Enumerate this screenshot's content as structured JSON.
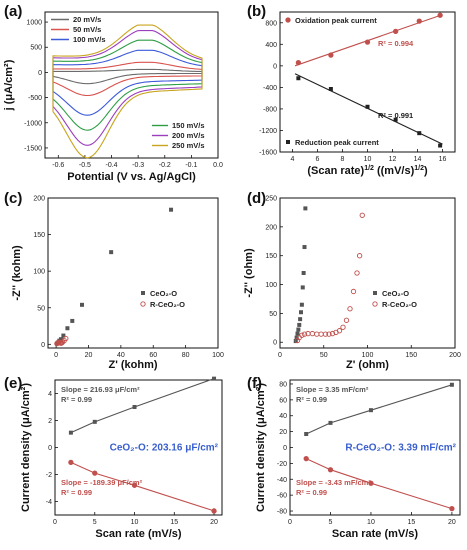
{
  "chart_data": [
    {
      "panel": "(a)",
      "type": "line",
      "xlabel": "Potential (V vs. Ag/AgCl)",
      "ylabel": "j (μA/cm²)",
      "xlim": [
        -0.65,
        0.0
      ],
      "ylim": [
        -1700,
        1200
      ],
      "xticks": [
        "-0.6",
        "-0.5",
        "-0.4",
        "-0.3",
        "-0.2",
        "-0.1",
        "0.0"
      ],
      "yticks": [
        "-1500",
        "-1000",
        "-500",
        "0",
        "500",
        "1000"
      ],
      "legend_top": [
        "20  mV/s",
        "50  mV/s",
        "100 mV/s"
      ],
      "legend_bottom": [
        "150 mV/s",
        "200 mV/s",
        "250 mV/s"
      ],
      "series": [
        {
          "name": "20  mV/s",
          "color": "#6b6b6b",
          "ox_peak": 60,
          "red_peak": -230
        },
        {
          "name": "50  mV/s",
          "color": "#d9534f",
          "ox_peak": 200,
          "red_peak": -430
        },
        {
          "name": "100 mV/s",
          "color": "#3d5bd9",
          "ox_peak": 440,
          "red_peak": -760
        },
        {
          "name": "150 mV/s",
          "color": "#2e9e46",
          "ox_peak": 640,
          "red_peak": -1000
        },
        {
          "name": "200 mV/s",
          "color": "#9b3fbf",
          "ox_peak": 830,
          "red_peak": -1250
        },
        {
          "name": "250 mV/s",
          "color": "#c8a51e",
          "ox_peak": 940,
          "red_peak": -1480
        }
      ]
    },
    {
      "panel": "(b)",
      "type": "scatter",
      "xlabel": "(Scan rate)",
      "xlabel_sup1": "1/2",
      "xlabel_mid": " ((mV/s)",
      "xlabel_sup2": "1/2",
      "xlabel_end": ")",
      "xlim": [
        3,
        17
      ],
      "ylim": [
        -1600,
        1000
      ],
      "xticks": [
        "4",
        "6",
        "8",
        "10",
        "12",
        "14",
        "16"
      ],
      "yticks": [
        "-1600",
        "-1200",
        "-800",
        "-400",
        "0",
        "400",
        "800"
      ],
      "legend_ox": "Oxidation peak current",
      "legend_red": "Reduction peak current",
      "r2_ox": "R² = 0.994",
      "r2_red": "R² = 0.991",
      "x": [
        4.47,
        7.07,
        10.0,
        12.25,
        14.14,
        15.81
      ],
      "oxidation": [
        60,
        200,
        440,
        640,
        830,
        940
      ],
      "reduction": [
        -230,
        -430,
        -760,
        -1000,
        -1250,
        -1480
      ],
      "colors": {
        "oxidation": "#c0504d",
        "reduction": "#222222"
      }
    },
    {
      "panel": "(c)",
      "type": "scatter",
      "xlabel": "Z' (kohm)",
      "ylabel": "-Z'' (kohm)",
      "xlim": [
        -5,
        100
      ],
      "ylim": [
        -5,
        200
      ],
      "xticks": [
        "0",
        "20",
        "40",
        "60",
        "80",
        "100"
      ],
      "yticks": [
        "0",
        "50",
        "100",
        "150",
        "200"
      ],
      "series": [
        {
          "name": "CeO₂-O",
          "color": "#555555",
          "shape": "square",
          "x": [
            0.5,
            1,
            1.5,
            2,
            3,
            4.5,
            7,
            10,
            16,
            34,
            71
          ],
          "y": [
            1,
            2,
            3,
            5,
            7,
            12,
            22,
            32,
            54,
            126,
            184
          ]
        },
        {
          "name": "R-CeO₂-O",
          "color": "#c0504d",
          "shape": "circle",
          "x": [
            0.5,
            1,
            1.5,
            2,
            2.5,
            3,
            3.5,
            4,
            5,
            6
          ],
          "y": [
            1,
            2,
            2.5,
            3,
            2,
            1.5,
            2,
            3,
            5,
            8
          ]
        }
      ]
    },
    {
      "panel": "(d)",
      "type": "scatter",
      "xlabel": "Z' (ohm)",
      "ylabel": "-Z'' (ohm)",
      "xlim": [
        0,
        200
      ],
      "ylim": [
        -10,
        250
      ],
      "xticks": [
        "0",
        "50",
        "100",
        "150",
        "200"
      ],
      "yticks": [
        "0",
        "50",
        "100",
        "150",
        "200",
        "250"
      ],
      "series": [
        {
          "name": "CeO₂-O",
          "color": "#555555",
          "shape": "square",
          "x": [
            18,
            19,
            20,
            21,
            22,
            23,
            24,
            25,
            26,
            27,
            28,
            29
          ],
          "y": [
            2,
            8,
            15,
            22,
            30,
            40,
            52,
            65,
            95,
            120,
            165,
            232
          ]
        },
        {
          "name": "R-CeO₂-O",
          "color": "#c0504d",
          "shape": "circle",
          "x": [
            20,
            22,
            25,
            28,
            32,
            37,
            42,
            47,
            52,
            56,
            60,
            64,
            68,
            72,
            76,
            80,
            84,
            88,
            91,
            94
          ],
          "y": [
            3,
            8,
            12,
            14,
            15,
            15,
            14,
            14,
            14,
            14,
            15,
            17,
            20,
            26,
            38,
            58,
            88,
            120,
            150,
            220
          ]
        }
      ]
    },
    {
      "panel": "(e)",
      "type": "line",
      "xlabel": "Scan rate (mV/s)",
      "ylabel": "Current density (μA/cm²)",
      "xlim": [
        0,
        21
      ],
      "ylim": [
        -5,
        5
      ],
      "xticks": [
        "0",
        "5",
        "10",
        "15",
        "20"
      ],
      "yticks": [
        "-4",
        "-2",
        "0",
        "2",
        "4"
      ],
      "slope_pos": "Slope = 216.93 μF/cm²",
      "r2_pos": "R² = 0.99",
      "slope_neg": "Slope = -189.39 μF/cm²",
      "r2_neg": "R² = 0.99",
      "center_label": "CeO₂-O: 203.16 μF/cm²",
      "x": [
        2,
        5,
        10,
        20
      ],
      "anodic": [
        1.1,
        1.9,
        3.0,
        5.1
      ],
      "cathodic": [
        -1.1,
        -1.9,
        -2.8,
        -4.7
      ],
      "colors": {
        "anodic": "#555555",
        "cathodic": "#c0504d",
        "label": "#3a5fcd"
      }
    },
    {
      "panel": "(f)",
      "type": "line",
      "xlabel": "Scan rate (mV/s)",
      "ylabel": "Current density (μA/cm²)",
      "xlim": [
        0,
        21
      ],
      "ylim": [
        -85,
        85
      ],
      "xticks": [
        "0",
        "5",
        "10",
        "15",
        "20"
      ],
      "yticks": [
        "-80",
        "-60",
        "-40",
        "-20",
        "0",
        "20",
        "40",
        "60",
        "80"
      ],
      "slope_pos": "Slope = 3.35 mF/cm²",
      "r2_pos": "R² = 0.99",
      "slope_neg": "Slope = -3.43 mF/cm²",
      "r2_neg": "R² = 0.99",
      "center_label": "R-CeO₂-O: 3.39 mF/cm²",
      "x": [
        2,
        5,
        10,
        20
      ],
      "anodic": [
        17,
        31,
        47,
        79
      ],
      "cathodic": [
        -14,
        -28,
        -45,
        -77
      ],
      "colors": {
        "anodic": "#555555",
        "cathodic": "#c0504d",
        "label": "#3a5fcd"
      }
    }
  ]
}
